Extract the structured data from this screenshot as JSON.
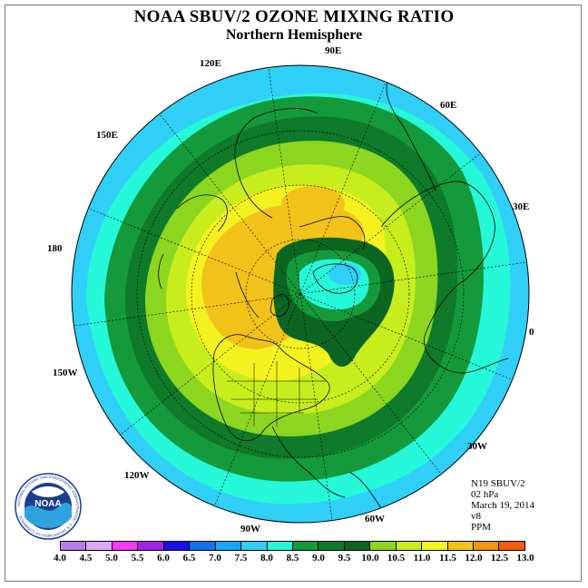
{
  "title": "NOAA SBUV/2 OZONE MIXING RATIO",
  "subtitle": "Northern Hemisphere",
  "longitudes": {
    "e90": "90E",
    "e60": "60E",
    "e30": "30E",
    "e0": "0",
    "w30": "30W",
    "w60": "60W",
    "w90": "90W",
    "w120": "120W",
    "w150": "150W",
    "d180": "180",
    "e150": "150E",
    "e120": "120E"
  },
  "info": {
    "satellite": "N19 SBUV/2",
    "level": "02 hPa",
    "date": "March 19, 2014",
    "version": "v8",
    "units": "PPM"
  },
  "colorbar": {
    "ticks": [
      "4.0",
      "4.5",
      "5.0",
      "5.5",
      "6.0",
      "6.5",
      "7.0",
      "7.5",
      "8.0",
      "8.5",
      "9.0",
      "9.5",
      "10.0",
      "10.5",
      "11.0",
      "11.5",
      "12.0",
      "12.5",
      "13.0"
    ],
    "colors": [
      "#b57fe9",
      "#dcaaf4",
      "#f33cf3",
      "#a322e8",
      "#1a10e5",
      "#1273e7",
      "#1aa6f6",
      "#2fcff8",
      "#25f8d8",
      "#149a3b",
      "#0e7a2a",
      "#0c6521",
      "#8cd620",
      "#c8ed1c",
      "#f4f21e",
      "#f1c21a",
      "#ef9512",
      "#ef5e0c",
      "#e40c0c",
      "#8e5438"
    ]
  },
  "map_fields": {
    "background": "#2fcff8",
    "outer_ring": "#25f8d8",
    "ring_85": "#149a3b",
    "ring_90": "#0e7a2a",
    "ring_95": "#8cd620",
    "ring_100": "#c8ed1c",
    "ring_105": "#f4f21e",
    "ring_110": "#f1c21a",
    "center_low_dark": "#0c6521",
    "center_low_light": "#25f8d8",
    "center_low_min": "#2fcff8"
  },
  "logo": {
    "text": "NOAA",
    "ring_text": "NATIONAL OCEANIC AND ATMOSPHERIC ADMINISTRATION · U.S. DEPARTMENT OF COMMERCE"
  }
}
